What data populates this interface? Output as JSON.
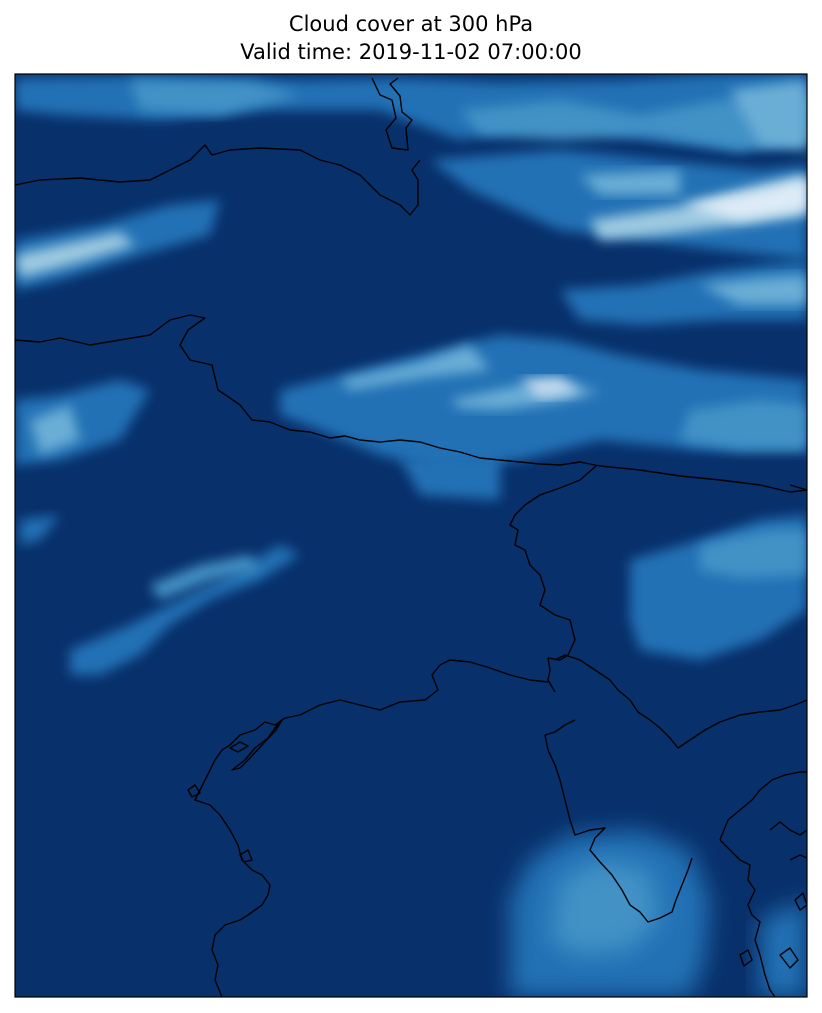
{
  "title": "Cloud cover at 300 hPa",
  "subtitle": "Valid time: 2019-11-02 07:00:00",
  "colormap": {
    "name": "Blues",
    "low": "#08306b",
    "mid": "#2171b5",
    "high": "#deebf7"
  },
  "coastline_color": "#000000",
  "frame_color": "#000000"
}
